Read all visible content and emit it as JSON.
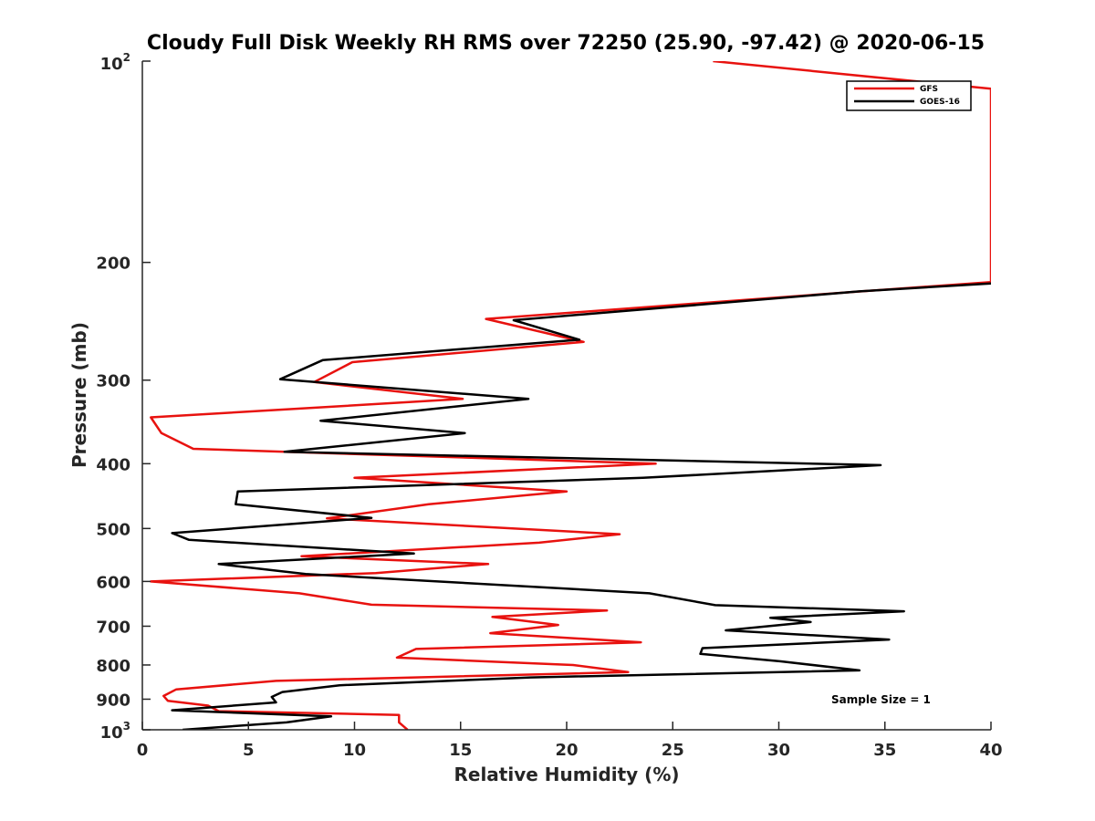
{
  "chart_data": {
    "type": "line",
    "title": "Cloudy Full Disk Weekly RH RMS over 72250 (25.90, -97.42) @ 2020-06-15",
    "xlabel": "Relative Humidity (%)",
    "ylabel": "Pressure (mb)",
    "xlim": [
      0,
      40
    ],
    "ylim": [
      100,
      1000
    ],
    "y_scale": "log",
    "y_reversed": true,
    "x_ticks": [
      "0",
      "5",
      "10",
      "15",
      "20",
      "25",
      "30",
      "35",
      "40"
    ],
    "y_ticks": [
      {
        "value": 100,
        "base": "10",
        "exp": "2"
      },
      {
        "value": 200,
        "text": "200"
      },
      {
        "value": 300,
        "text": "300"
      },
      {
        "value": 400,
        "text": "400"
      },
      {
        "value": 500,
        "text": "500"
      },
      {
        "value": 600,
        "text": "600"
      },
      {
        "value": 700,
        "text": "700"
      },
      {
        "value": 800,
        "text": "800"
      },
      {
        "value": 900,
        "text": "900"
      },
      {
        "value": 1000,
        "base": "10",
        "exp": "3"
      }
    ],
    "legend_position": "top-right",
    "annotation": "Sample Size = 1",
    "series": [
      {
        "name": "GFS",
        "color": "#e8120f",
        "points": [
          [
            26.9,
            100
          ],
          [
            40,
            110
          ],
          [
            40,
            214
          ],
          [
            33,
            222
          ],
          [
            16.2,
            243
          ],
          [
            20.8,
            263
          ],
          [
            9.9,
            282
          ],
          [
            8.1,
            302
          ],
          [
            15.1,
            320
          ],
          [
            0.4,
            341
          ],
          [
            0.9,
            360
          ],
          [
            2.4,
            380
          ],
          [
            24.2,
            400
          ],
          [
            10.0,
            420
          ],
          [
            20.0,
            440
          ],
          [
            13.5,
            460
          ],
          [
            8.7,
            483
          ],
          [
            22.5,
            510
          ],
          [
            18.7,
            525
          ],
          [
            7.5,
            550
          ],
          [
            16.3,
            565
          ],
          [
            11.0,
            583
          ],
          [
            0.4,
            600
          ],
          [
            7.4,
            625
          ],
          [
            10.8,
            650
          ],
          [
            21.9,
            663
          ],
          [
            16.5,
            678
          ],
          [
            19.6,
            697
          ],
          [
            16.4,
            717
          ],
          [
            23.5,
            740
          ],
          [
            12.9,
            757
          ],
          [
            12.0,
            780
          ],
          [
            20.3,
            800
          ],
          [
            22.9,
            820
          ],
          [
            6.3,
            845
          ],
          [
            1.6,
            870
          ],
          [
            1.0,
            890
          ],
          [
            1.2,
            905
          ],
          [
            3.1,
            920
          ],
          [
            3.6,
            938
          ],
          [
            12.1,
            950
          ],
          [
            12.1,
            975
          ],
          [
            12.5,
            1000
          ]
        ]
      },
      {
        "name": "GOES-16",
        "color": "#000000",
        "points": [
          [
            40,
            215
          ],
          [
            33.8,
            221
          ],
          [
            17.5,
            244
          ],
          [
            20.6,
            261
          ],
          [
            8.5,
            280
          ],
          [
            6.5,
            299
          ],
          [
            18.2,
            320
          ],
          [
            8.4,
            345
          ],
          [
            15.2,
            360
          ],
          [
            6.7,
            384
          ],
          [
            34.8,
            402
          ],
          [
            23.6,
            420
          ],
          [
            4.5,
            440
          ],
          [
            4.4,
            460
          ],
          [
            10.8,
            482
          ],
          [
            1.4,
            508
          ],
          [
            2.2,
            520
          ],
          [
            12.8,
            545
          ],
          [
            3.6,
            565
          ],
          [
            7.7,
            585
          ],
          [
            23.9,
            625
          ],
          [
            27.0,
            651
          ],
          [
            35.9,
            665
          ],
          [
            29.6,
            680
          ],
          [
            31.5,
            690
          ],
          [
            27.5,
            710
          ],
          [
            35.2,
            733
          ],
          [
            26.4,
            755
          ],
          [
            26.3,
            770
          ],
          [
            30.1,
            790
          ],
          [
            33.8,
            815
          ],
          [
            18.3,
            835
          ],
          [
            9.3,
            858
          ],
          [
            6.6,
            878
          ],
          [
            6.1,
            893
          ],
          [
            6.3,
            910
          ],
          [
            1.4,
            935
          ],
          [
            8.9,
            955
          ],
          [
            6.8,
            975
          ],
          [
            1.9,
            1000
          ]
        ]
      }
    ]
  }
}
